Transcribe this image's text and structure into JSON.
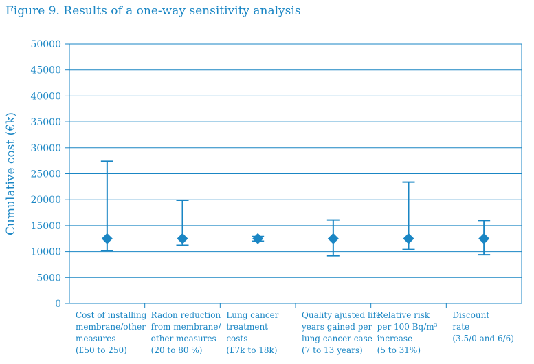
{
  "figure_title": "Figure 9. Results of a one-way sensitivity analysis",
  "colors": {
    "accent": "#1a86c4"
  },
  "chart_data": {
    "type": "errorbar",
    "title": "Figure 9. Results of a one-way sensitivity analysis",
    "ylabel": "Cumulative cost (€k)",
    "xlabel": "",
    "ylim": [
      0,
      50000
    ],
    "yticks": [
      0,
      5000,
      10000,
      15000,
      20000,
      25000,
      30000,
      35000,
      40000,
      45000,
      50000
    ],
    "grid": true,
    "categories": [
      [
        "Cost of installing",
        "membrane/other",
        "measures",
        "(£50 to 250)"
      ],
      [
        "Radon reduction",
        "from membrane/",
        "other measures",
        "(20 to 80 %)"
      ],
      [
        "Lung cancer",
        "treatment",
        "costs",
        "(£7k to 18k)"
      ],
      [
        "Quality ajusted life",
        "years gained per",
        "lung cancer case",
        "(7 to 13 years)"
      ],
      [
        "Relative risk",
        "per 100 Bq/m³",
        "increase",
        "(5 to 31%)"
      ],
      [
        "Discount",
        "rate",
        "(3.5/0 and 6/6)"
      ]
    ],
    "series": [
      {
        "base": [
          12500,
          12500,
          12500,
          12500,
          12500,
          12500
        ],
        "low": [
          10200,
          11200,
          12000,
          9200,
          10400,
          9400
        ],
        "high": [
          27400,
          19900,
          12900,
          16100,
          23400,
          16000
        ]
      }
    ]
  }
}
